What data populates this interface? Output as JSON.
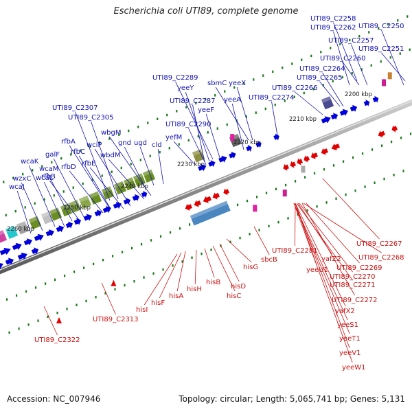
{
  "title": "Escherichia coli UTI89, complete genome",
  "footer": {
    "accession": "Accession: NC_007946",
    "topology": "Topology: circular; Length: 5,065,741 bp; Genes: 5,131"
  },
  "colors": {
    "forward": "#0000dd",
    "reverse": "#e00000",
    "forward_label": "#1010b0",
    "reverse_label": "#cc1010",
    "backbone": "#8a8a8a",
    "tick": "#1a7a1a"
  },
  "kbp_labels": [
    "2200 kbp",
    "2210 kbp",
    "2220 kbp",
    "2230 kbp",
    "2240 kbp",
    "2250 kbp",
    "2260 kbp"
  ],
  "forward_labels": [
    "UTI89_C2258",
    "UTI89_C2262",
    "UTI89_C2250",
    "UTI89_C2257",
    "UTI89_C2251",
    "UTI89_C2260",
    "UTI89_C2264",
    "UTI89_C2265",
    "UTI89_C2266",
    "UTI89_C2274",
    "UTI89_C2289",
    "sbmC",
    "yeeX",
    "yeeY",
    "yeeA",
    "UTI89_C2287",
    "yeeF",
    "UTI89_C2307",
    "UTI89_C2305",
    "UTI89_C2290",
    "wbgM",
    "yefM",
    "gnd",
    "ugd",
    "cld",
    "rfbA",
    "wciP",
    "rfbC",
    "wbdM",
    "galF",
    "rfbD",
    "rfbE",
    "wcaK",
    "wcaM",
    "rfbB",
    "wzxC",
    "wcaL",
    "wcaJ"
  ],
  "reverse_labels": [
    "UTI89_C2267",
    "UTI89_C2281",
    "UTI89_C2268",
    "yafZ2",
    "yeeU1",
    "UTI89_C2269",
    "UTI89_C2270",
    "UTI89_C2271",
    "UTI89_C2272",
    "yafX2",
    "yeeS1",
    "yeeT1",
    "yeeV1",
    "yeeW1",
    "sbcB",
    "hisG",
    "hisD",
    "hisC",
    "hisB",
    "hisH",
    "hisA",
    "hisF",
    "hisI",
    "UTI89_C2313",
    "UTI89_C2322"
  ]
}
